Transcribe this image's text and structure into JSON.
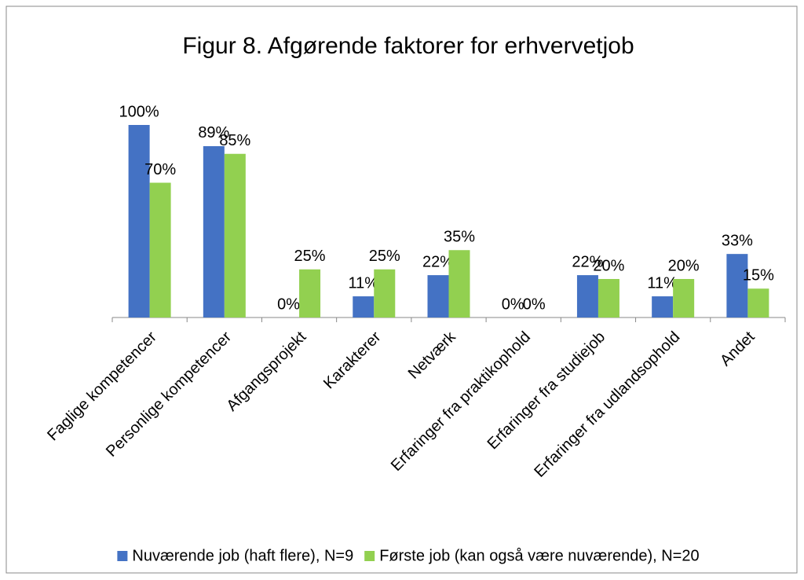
{
  "chart_data": {
    "type": "bar",
    "title": "Figur 8. Afgørende faktorer for erhvervetjob",
    "categories": [
      "Faglige kompetencer",
      "Personlige kompetencer",
      "Afgangsprojekt",
      "Karakterer",
      "Netværk",
      "Erfaringer fra praktikophold",
      "Erfaringer fra studiejob",
      "Erfaringer fra udlandsophold",
      "Andet"
    ],
    "series": [
      {
        "name": "Nuværende job (haft flere), N=9",
        "color": "#4472c4",
        "values": [
          100,
          89,
          0,
          11,
          22,
          0,
          22,
          11,
          33
        ],
        "value_labels": [
          "100%",
          "89%",
          "0%",
          "11%",
          "22%",
          "0%",
          "22%",
          "11%",
          "33%"
        ]
      },
      {
        "name": "Første job (kan også være nuværende), N=20",
        "color": "#92d050",
        "values": [
          70,
          85,
          25,
          25,
          35,
          0,
          20,
          20,
          15
        ],
        "value_labels": [
          "70%",
          "85%",
          "25%",
          "25%",
          "35%",
          "0%",
          "20%",
          "20%",
          "15%"
        ]
      }
    ],
    "legend": "bottom"
  }
}
